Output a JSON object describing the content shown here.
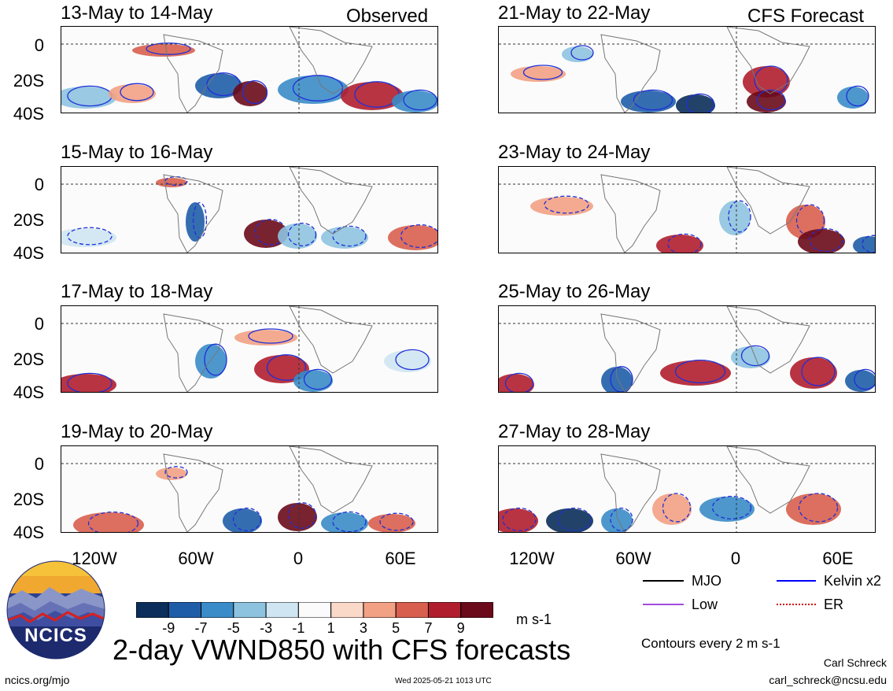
{
  "panels": [
    {
      "title": "13-May to 14-May",
      "tag": "Observed"
    },
    {
      "title": "15-May to 16-May",
      "tag": ""
    },
    {
      "title": "17-May to 18-May",
      "tag": ""
    },
    {
      "title": "19-May to 20-May",
      "tag": ""
    },
    {
      "title": "21-May to 22-May",
      "tag": "CFS Forecast"
    },
    {
      "title": "23-May to 24-May",
      "tag": ""
    },
    {
      "title": "25-May to 26-May",
      "tag": ""
    },
    {
      "title": "27-May to 28-May",
      "tag": ""
    }
  ],
  "y_ticks": [
    "0",
    "20S",
    "40S"
  ],
  "x_ticks": [
    "120W",
    "60W",
    "0",
    "60E"
  ],
  "colorbar": {
    "ticks": [
      "-9",
      "-7",
      "-5",
      "-3",
      "-1",
      "1",
      "3",
      "5",
      "7",
      "9"
    ],
    "colors": [
      "#0b2e5a",
      "#1f5da8",
      "#3a8cc8",
      "#8ec3e0",
      "#cfe6f2",
      "#fbfbfb",
      "#fbd9c8",
      "#f2a184",
      "#d85f4e",
      "#b01e2d",
      "#6a0a1a"
    ],
    "units": "m s-1"
  },
  "legend": [
    {
      "label": "MJO",
      "color": "#000000",
      "style": "solid"
    },
    {
      "label": "Kelvin x2",
      "color": "#0000ff",
      "style": "solid"
    },
    {
      "label": "Low",
      "color": "#a24bdc",
      "style": "solid"
    },
    {
      "label": "ER",
      "color": "#d40000",
      "style": "dotted"
    }
  ],
  "contours_note": "Contours every 2 m s-1",
  "title": "2-day VWND850 with CFS forecasts",
  "logo_text": "NCICS",
  "url": "ncics.org/mjo",
  "timestamp": "Wed 2025-05-21 1013 UTC",
  "author": "Carl Schreck",
  "email": "carl_schreck@ncsu.edu"
}
